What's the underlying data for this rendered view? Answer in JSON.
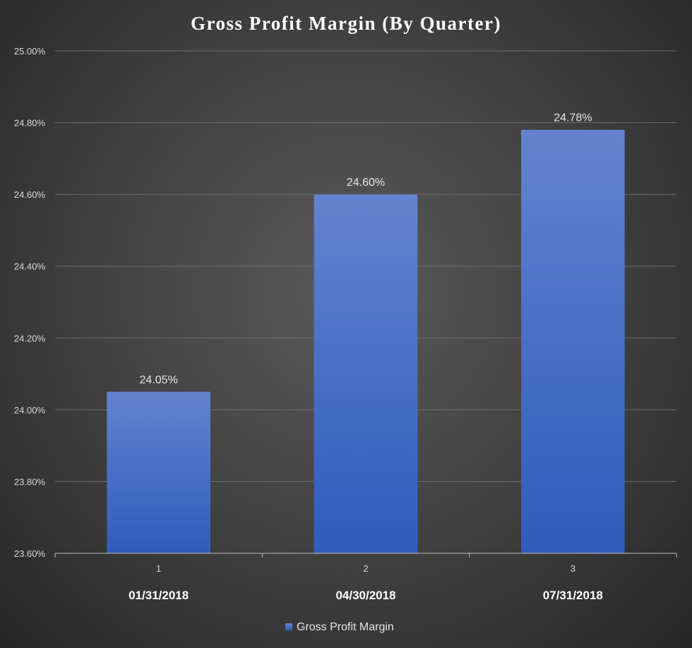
{
  "chart_data": {
    "type": "bar",
    "title": "Gross Profit Margin (By Quarter)",
    "categories": [
      "1",
      "2",
      "3"
    ],
    "date_labels": [
      "01/31/2018",
      "04/30/2018",
      "07/31/2018"
    ],
    "series": [
      {
        "name": "Gross Profit Margin",
        "values": [
          24.05,
          24.6,
          24.78
        ],
        "data_labels": [
          "24.05%",
          "24.60%",
          "24.78%"
        ],
        "color": "#4472c4"
      }
    ],
    "ylim": [
      23.6,
      25.0
    ],
    "yticks": [
      23.6,
      23.8,
      24.0,
      24.2,
      24.4,
      24.6,
      24.8,
      25.0
    ],
    "ytick_labels": [
      "23.60%",
      "23.80%",
      "24.00%",
      "24.20%",
      "24.40%",
      "24.60%",
      "24.80%",
      "25.00%"
    ],
    "grid": true,
    "legend_position": "bottom"
  }
}
